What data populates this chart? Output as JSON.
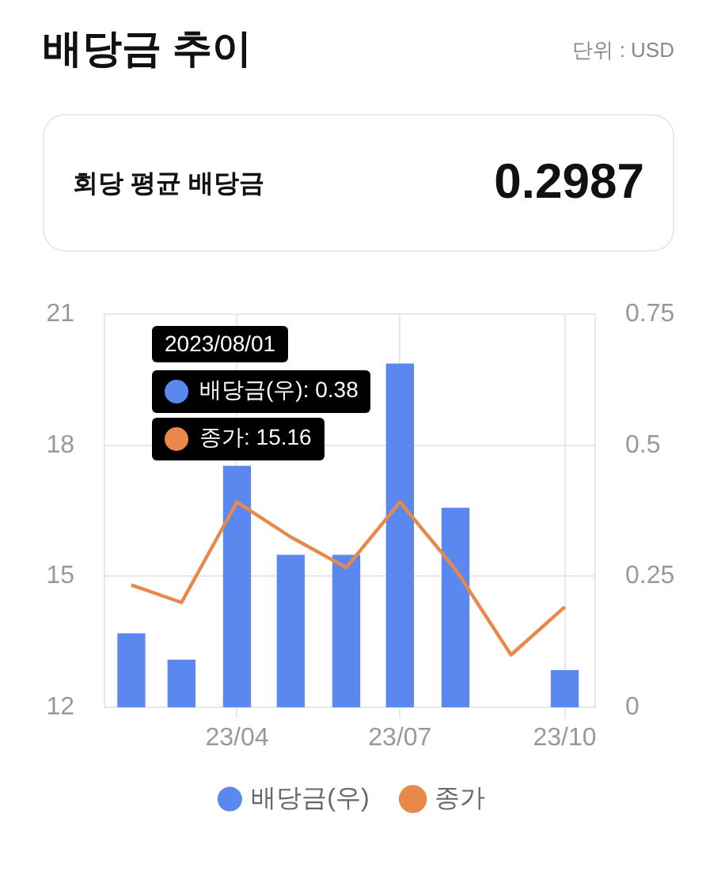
{
  "chart_data": {
    "type": "bar",
    "title": "배당금 추이",
    "annotations": [
      "단위 : USD",
      "회당 평균 배당금",
      "0.2987",
      "2023/08/01",
      "배당금(우): 0.38",
      "종가: 15.16"
    ],
    "x": [
      "2023-02-01",
      "2023-03-01",
      "2023-04-01",
      "2023-05-01",
      "2023-06-01",
      "2023-07-01",
      "2023-08-01",
      "2023-09-01",
      "2023-10-01"
    ],
    "series": [
      {
        "name": "배당금(우)",
        "axis": "y2",
        "color": "#5a88ef",
        "values": [
          0.14,
          0.09,
          0.46,
          0.29,
          0.29,
          0.655,
          0.38,
          null,
          0.07
        ]
      },
      {
        "name": "종가",
        "type": "line",
        "color": "#e8894b",
        "values": [
          14.8,
          14.4,
          16.7,
          15.9,
          15.2,
          16.7,
          15.16,
          13.2,
          14.3
        ]
      }
    ],
    "xlim": [
      "2023-01-17",
      "2023-10-18"
    ],
    "xticks": [
      {
        "value": "2023-04-01",
        "label": "23/04"
      },
      {
        "value": "2023-07-01",
        "label": "23/07"
      },
      {
        "value": "2023-10-01",
        "label": "23/10"
      }
    ],
    "ylim": [
      12,
      21
    ],
    "yticks": [
      12,
      15,
      18,
      21
    ],
    "y2lim": [
      0,
      0.75
    ],
    "y2ticks": [
      0,
      0.25,
      0.5,
      0.75
    ],
    "grid": true,
    "legend": "bottom"
  }
}
